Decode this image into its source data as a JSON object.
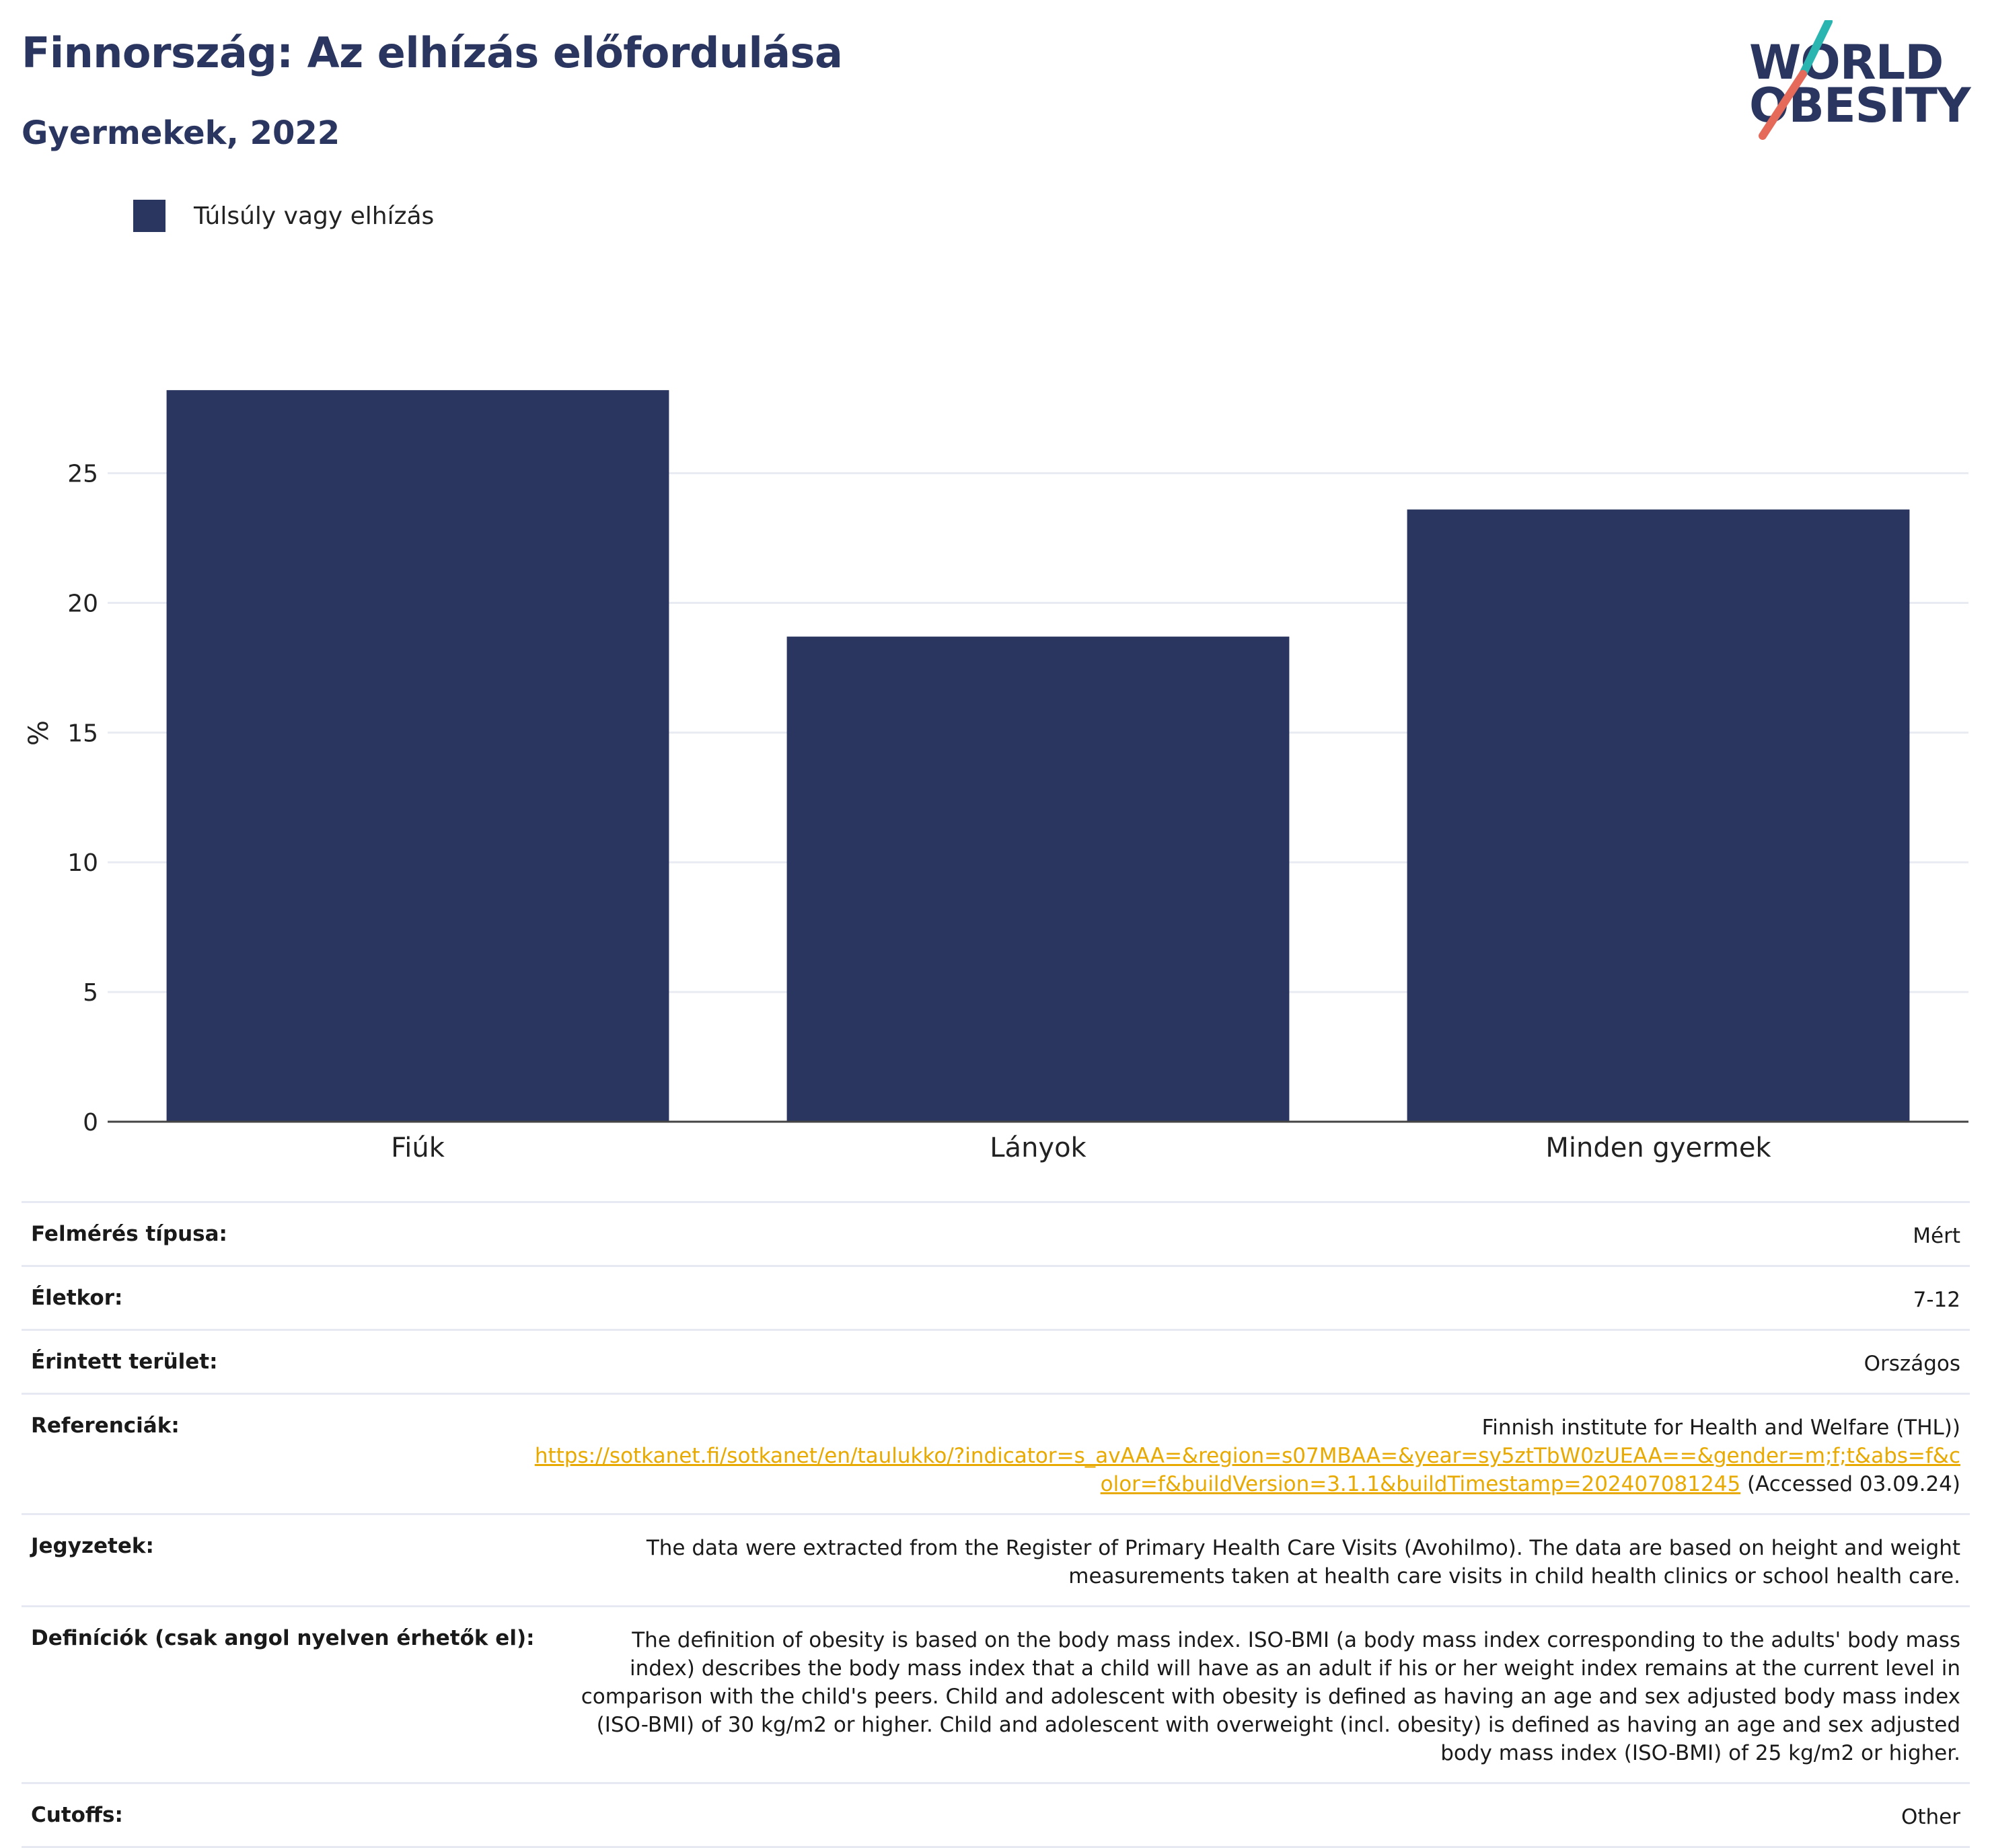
{
  "header": {
    "title": "Finnország: Az elhízás előfordulása",
    "subtitle": "Gyermekek, 2022"
  },
  "logo": {
    "line1": "WORLD",
    "line2": "OBESITY",
    "accent_colors": [
      "#2bb5b1",
      "#e66a5a"
    ]
  },
  "chart_data": {
    "type": "bar",
    "categories": [
      "Fiúk",
      "Lányok",
      "Minden gyermek"
    ],
    "series": [
      {
        "name": "Túlsúly vagy elhízás",
        "values": [
          28.2,
          18.7,
          23.6
        ],
        "color": "#2a365f"
      }
    ],
    "ylabel": "%",
    "ylim": [
      0,
      29.5
    ],
    "yticks": [
      0,
      5,
      10,
      15,
      20,
      25
    ],
    "grid": true,
    "legend": "top-left"
  },
  "info": {
    "survey_type": {
      "label": "Felmérés típusa:",
      "value": "Mért"
    },
    "age": {
      "label": "Életkor:",
      "value": "7-12"
    },
    "area": {
      "label": "Érintett terület:",
      "value": "Országos"
    },
    "references": {
      "label": "Referenciák:",
      "source": "Finnish institute for Health and Welfare (THL))",
      "url": "https://sotkanet.fi/sotkanet/en/taulukko/?indicator=s_avAAA=&region=s07MBAA=&year=sy5ztTbW0zUEAA==&gender=m;f;t&abs=f&color=f&buildVersion=3.1.1&buildTimestamp=202407081245",
      "accessed": "(Accessed 03.09.24)"
    },
    "notes": {
      "label": "Jegyzetek:",
      "value": "The data were extracted from the Register of Primary Health Care Visits (Avohilmo). The data are based on height and weight measurements taken at health care visits in child health clinics or school health care."
    },
    "definitions": {
      "label": "Definíciók (csak angol nyelven érhetők el):",
      "value": "The definition of obesity is based on the body mass index. ISO-BMI (a body mass index corresponding to the adults' body mass index) describes the body mass index that a child will have as an adult if his or her weight index remains at the current level in comparison with the child's peers. Child and adolescent with obesity is defined as having an age and sex adjusted body mass index (ISO-BMI) of 30 kg/m2 or higher. Child and adolescent with overweight (incl. obesity) is defined as having an age and sex adjusted body mass index (ISO-BMI) of 25 kg/m2 or higher."
    },
    "cutoffs": {
      "label": "Cutoffs:",
      "value": "Other"
    }
  }
}
